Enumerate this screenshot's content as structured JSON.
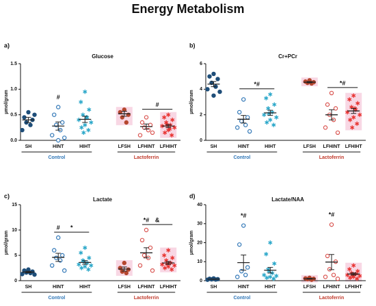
{
  "title": "Energy Metabolism",
  "chart_data": [
    {
      "type": "scatter",
      "panel": "a)",
      "title": "Glucose",
      "ylabel": "µmol/gram",
      "ylim": [
        0,
        1.5
      ],
      "yticks": [
        {
          "value": 0,
          "label": "0.0"
        },
        {
          "value": 0.5,
          "label": "0.5"
        },
        {
          "value": 1.0,
          "label": "1.0"
        },
        {
          "value": 1.5,
          "label": "1.5"
        }
      ],
      "series": [
        {
          "name": "SH",
          "color": "#1f4e79",
          "marker": "filled",
          "values": [
            0.55,
            0.45,
            0.4,
            0.35,
            0.3,
            0.2,
            0.5
          ],
          "mean": 0.4,
          "error": 0.05
        },
        {
          "name": "HINT",
          "color": "#2e75b6",
          "marker": "open",
          "values": [
            0.65,
            0.5,
            0.35,
            0.3,
            0.2,
            0.1,
            0.05,
            0.0
          ],
          "mean": 0.28,
          "error": 0.08
        },
        {
          "name": "HIHT",
          "color": "#2aa7c9",
          "marker": "star",
          "values": [
            0.95,
            0.75,
            0.6,
            0.5,
            0.45,
            0.4,
            0.35,
            0.3,
            0.25,
            0.2,
            0.15,
            0.45
          ],
          "mean": 0.41,
          "error": 0.06
        },
        {
          "name": "LFSH",
          "color": "#b5472f",
          "marker": "filled",
          "values": [
            0.6,
            0.55,
            0.5,
            0.45,
            0.35
          ],
          "mean": 0.52,
          "error": 0.05,
          "highlight": true
        },
        {
          "name": "LFHINT",
          "color": "#d9534f",
          "marker": "open",
          "values": [
            0.45,
            0.35,
            0.3,
            0.25,
            0.2,
            0.1,
            0.15
          ],
          "mean": 0.27,
          "error": 0.05
        },
        {
          "name": "LFHIHT",
          "color": "#e8322f",
          "marker": "star",
          "values": [
            0.5,
            0.45,
            0.4,
            0.35,
            0.3,
            0.28,
            0.25,
            0.2,
            0.15,
            0.1,
            0.3,
            0.22
          ],
          "mean": 0.28,
          "error": 0.03,
          "highlight": true
        }
      ],
      "groups": [
        {
          "label": "Control",
          "from": "SH",
          "to": "HIHT",
          "color": "#2e75b6"
        },
        {
          "label": "Lactoferrin",
          "from": "LFSH",
          "to": "LFHIHT",
          "color": "#c0392b"
        }
      ],
      "annotations": [
        {
          "text": "#",
          "from": "HINT",
          "to": "HINT"
        },
        {
          "text": "#",
          "from": "LFHINT",
          "to": "LFHIHT"
        }
      ]
    },
    {
      "type": "scatter",
      "panel": "b)",
      "title": "Cr+PCr",
      "ylabel": "µmol/gram",
      "ylim": [
        0,
        6
      ],
      "yticks": [
        0,
        2,
        4,
        6
      ],
      "series": [
        {
          "name": "SH",
          "color": "#1f4e79",
          "marker": "filled",
          "values": [
            5.2,
            5.0,
            4.8,
            4.5,
            4.2,
            4.0,
            3.8,
            3.5
          ],
          "mean": 4.4,
          "error": 0.2
        },
        {
          "name": "HINT",
          "color": "#2e75b6",
          "marker": "open",
          "values": [
            3.2,
            2.2,
            1.8,
            1.5,
            1.2,
            1.0,
            0.7
          ],
          "mean": 1.65,
          "error": 0.3
        },
        {
          "name": "HIHT",
          "color": "#2aa7c9",
          "marker": "star",
          "values": [
            3.6,
            3.3,
            2.8,
            2.5,
            2.2,
            2.0,
            1.8,
            1.6,
            1.4,
            1.2,
            2.1
          ],
          "mean": 2.15,
          "error": 0.2
        },
        {
          "name": "LFSH",
          "color": "#b5472f",
          "marker": "filled",
          "values": [
            4.7,
            4.6,
            4.55,
            4.5,
            4.45
          ],
          "mean": 4.55,
          "error": 0.05,
          "highlight": true
        },
        {
          "name": "LFHINT",
          "color": "#d9534f",
          "marker": "open",
          "values": [
            3.7,
            2.8,
            2.5,
            2.0,
            1.6,
            1.0,
            0.6
          ],
          "mean": 2.0,
          "error": 0.4
        },
        {
          "name": "LFHIHT",
          "color": "#e8322f",
          "marker": "star",
          "values": [
            3.5,
            3.2,
            2.9,
            2.6,
            2.4,
            2.2,
            2.0,
            1.8,
            1.6,
            1.3,
            1.0,
            2.5
          ],
          "mean": 2.3,
          "error": 0.2,
          "highlight": true
        }
      ],
      "groups": [
        {
          "label": "Control",
          "from": "SH",
          "to": "HIHT",
          "color": "#2e75b6"
        },
        {
          "label": "Lactoferrin",
          "from": "LFSH",
          "to": "LFHIHT",
          "color": "#c0392b"
        }
      ],
      "annotations": [
        {
          "text": "*#",
          "from": "HINT",
          "to": "HIHT"
        },
        {
          "text": "*#",
          "from": "LFHINT",
          "to": "LFHIHT"
        }
      ]
    },
    {
      "type": "scatter",
      "panel": "c)",
      "title": "Lactate",
      "ylabel": "µmol/gram",
      "ylim": [
        0,
        15
      ],
      "yticks": [
        0,
        5,
        10,
        15
      ],
      "series": [
        {
          "name": "SH",
          "color": "#1f4e79",
          "marker": "filled",
          "values": [
            2.2,
            2.0,
            1.8,
            1.6,
            1.5,
            1.3,
            1.2
          ],
          "mean": 1.7,
          "error": 0.15
        },
        {
          "name": "HINT",
          "color": "#2e75b6",
          "marker": "open",
          "values": [
            8.5,
            6.0,
            5.0,
            4.5,
            4.0,
            3.0,
            2.0
          ],
          "mean": 4.6,
          "error": 0.8
        },
        {
          "name": "HIHT",
          "color": "#2aa7c9",
          "marker": "star",
          "values": [
            6.5,
            5.5,
            4.5,
            4.0,
            3.5,
            3.2,
            3.0,
            2.8,
            2.5,
            2.2,
            3.8
          ],
          "mean": 3.6,
          "error": 0.35
        },
        {
          "name": "LFSH",
          "color": "#b5472f",
          "marker": "filled",
          "values": [
            3.5,
            2.5,
            2.2,
            1.8,
            1.5
          ],
          "mean": 2.3,
          "error": 0.4,
          "highlight": true
        },
        {
          "name": "LFHINT",
          "color": "#d9534f",
          "marker": "open",
          "values": [
            10,
            8,
            6.5,
            5,
            4.5,
            3,
            2
          ],
          "mean": 5.5,
          "error": 1.0
        },
        {
          "name": "LFHIHT",
          "color": "#e8322f",
          "marker": "star",
          "values": [
            6,
            5,
            4.5,
            4,
            3.5,
            3.2,
            3,
            2.8,
            2.5,
            2.2,
            3.3
          ],
          "mean": 3.5,
          "error": 0.3,
          "highlight": true
        }
      ],
      "groups": [
        {
          "label": "Control",
          "from": "SH",
          "to": "HIHT",
          "color": "#2e75b6"
        },
        {
          "label": "Lactoferrin",
          "from": "LFSH",
          "to": "LFHIHT",
          "color": "#c0392b"
        }
      ],
      "annotations": [
        {
          "text": "#",
          "from": "HINT",
          "to": "HINT"
        },
        {
          "text": "*",
          "from": "HINT",
          "to": "HIHT"
        },
        {
          "text": "*#",
          "from": "LFHINT",
          "to": "LFHINT"
        },
        {
          "text": "&",
          "from": "LFHINT",
          "to": "LFHIHT"
        }
      ]
    },
    {
      "type": "scatter",
      "panel": "d)",
      "title": "Lactate/NAA",
      "ylabel": "µmol/gram",
      "ylim": [
        0,
        40
      ],
      "yticks": [
        0,
        10,
        20,
        30,
        40
      ],
      "series": [
        {
          "name": "SH",
          "color": "#1f4e79",
          "marker": "filled",
          "values": [
            1.2,
            1,
            0.8,
            0.7,
            0.6,
            0.5
          ],
          "mean": 0.8,
          "error": 0.1
        },
        {
          "name": "HINT",
          "color": "#2e75b6",
          "marker": "open",
          "values": [
            29,
            19,
            7,
            5,
            3,
            2
          ],
          "mean": 9.5,
          "error": 4
        },
        {
          "name": "HIHT",
          "color": "#2aa7c9",
          "marker": "star",
          "values": [
            20,
            14,
            9,
            6,
            4,
            3,
            2.5,
            2,
            1.5,
            1,
            5
          ],
          "mean": 5.5,
          "error": 1.5
        },
        {
          "name": "LFSH",
          "color": "#b5472f",
          "marker": "filled",
          "values": [
            1.5,
            1.2,
            1,
            0.8,
            0.5
          ],
          "mean": 1,
          "error": 0.2,
          "highlight": true
        },
        {
          "name": "LFHINT",
          "color": "#d9534f",
          "marker": "open",
          "values": [
            29.5,
            13,
            10,
            6,
            3,
            2,
            1
          ],
          "mean": 9.8,
          "error": 4
        },
        {
          "name": "LFHIHT",
          "color": "#e8322f",
          "marker": "star",
          "values": [
            8,
            6,
            5,
            4,
            3.5,
            3,
            2.5,
            2,
            1.5,
            1,
            3
          ],
          "mean": 3.5,
          "error": 0.6,
          "highlight": true
        }
      ],
      "groups": [
        {
          "label": "Control",
          "from": "SH",
          "to": "HIHT",
          "color": "#2e75b6"
        },
        {
          "label": "Lactoferrin",
          "from": "LFSH",
          "to": "LFHIHT",
          "color": "#c0392b"
        }
      ],
      "annotations": [
        {
          "text": "*#",
          "from": "HINT",
          "to": "HINT"
        },
        {
          "text": "*#",
          "from": "LFHINT",
          "to": "LFHINT"
        }
      ]
    }
  ]
}
